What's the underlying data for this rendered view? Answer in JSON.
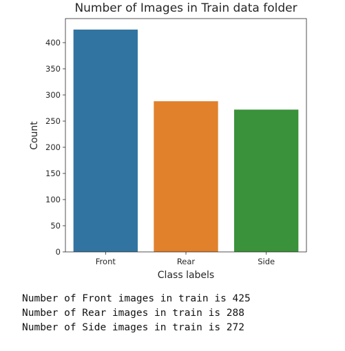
{
  "chart_data": {
    "type": "bar",
    "title": "Number of Images in Train data folder",
    "xlabel": "Class labels",
    "ylabel": "Count",
    "categories": [
      "Front",
      "Rear",
      "Side"
    ],
    "values": [
      425,
      288,
      272
    ],
    "colors": [
      "#3274a1",
      "#e1812c",
      "#3a923a"
    ],
    "ylim": [
      0,
      446
    ],
    "yticks": [
      0,
      50,
      100,
      150,
      200,
      250,
      300,
      350,
      400
    ],
    "grid": false
  },
  "output": {
    "lines": [
      "Number of Front images in train is 425",
      "Number of Rear images in train is 288",
      "Number of Side images in train is 272"
    ]
  }
}
